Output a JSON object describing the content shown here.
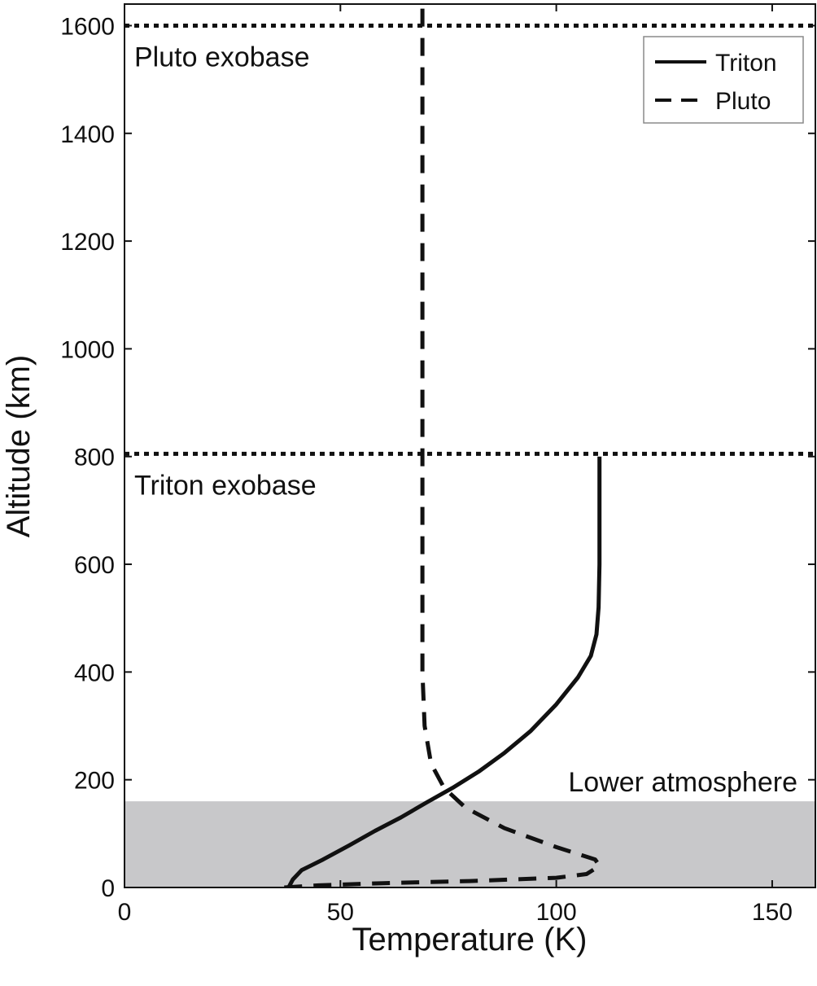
{
  "chart_data": {
    "type": "line",
    "title": "",
    "xlabel": "Temperature (K)",
    "ylabel": "Altitude (km)",
    "xlim": [
      0,
      160
    ],
    "ylim": [
      0,
      1640
    ],
    "xticks": [
      0,
      50,
      100,
      150
    ],
    "yticks": [
      0,
      200,
      400,
      600,
      800,
      1000,
      1200,
      1400,
      1600
    ],
    "grid": false,
    "legend_position": "top-right",
    "series": [
      {
        "name": "Triton",
        "style": "solid",
        "color": "#111111",
        "points": [
          [
            38,
            0
          ],
          [
            39,
            15
          ],
          [
            41,
            32
          ],
          [
            46,
            52
          ],
          [
            52,
            78
          ],
          [
            58,
            105
          ],
          [
            64,
            130
          ],
          [
            70,
            158
          ],
          [
            76,
            185
          ],
          [
            82,
            215
          ],
          [
            88,
            250
          ],
          [
            94,
            290
          ],
          [
            100,
            340
          ],
          [
            105,
            390
          ],
          [
            108,
            430
          ],
          [
            109.3,
            470
          ],
          [
            109.8,
            520
          ],
          [
            110,
            600
          ],
          [
            110,
            700
          ],
          [
            110,
            800
          ]
        ]
      },
      {
        "name": "Pluto",
        "style": "dashed",
        "color": "#111111",
        "points": [
          [
            37,
            0
          ],
          [
            45,
            4
          ],
          [
            60,
            8
          ],
          [
            80,
            12
          ],
          [
            100,
            18
          ],
          [
            107,
            25
          ],
          [
            110,
            40
          ],
          [
            109,
            52
          ],
          [
            100,
            75
          ],
          [
            88,
            110
          ],
          [
            79,
            148
          ],
          [
            74,
            185
          ],
          [
            71,
            230
          ],
          [
            69.5,
            300
          ],
          [
            69,
            400
          ],
          [
            69,
            600
          ],
          [
            69,
            800
          ],
          [
            69,
            1000
          ],
          [
            69,
            1200
          ],
          [
            69,
            1400
          ],
          [
            69,
            1600
          ],
          [
            69,
            1640
          ]
        ]
      }
    ],
    "reference_lines": [
      {
        "y": 1600,
        "label": "Pluto exobase"
      },
      {
        "y": 805,
        "label": "Triton exobase"
      }
    ],
    "shaded_region": {
      "y_from": 0,
      "y_to": 160,
      "label": "Lower atmosphere",
      "color": "#c8c8ca"
    }
  }
}
